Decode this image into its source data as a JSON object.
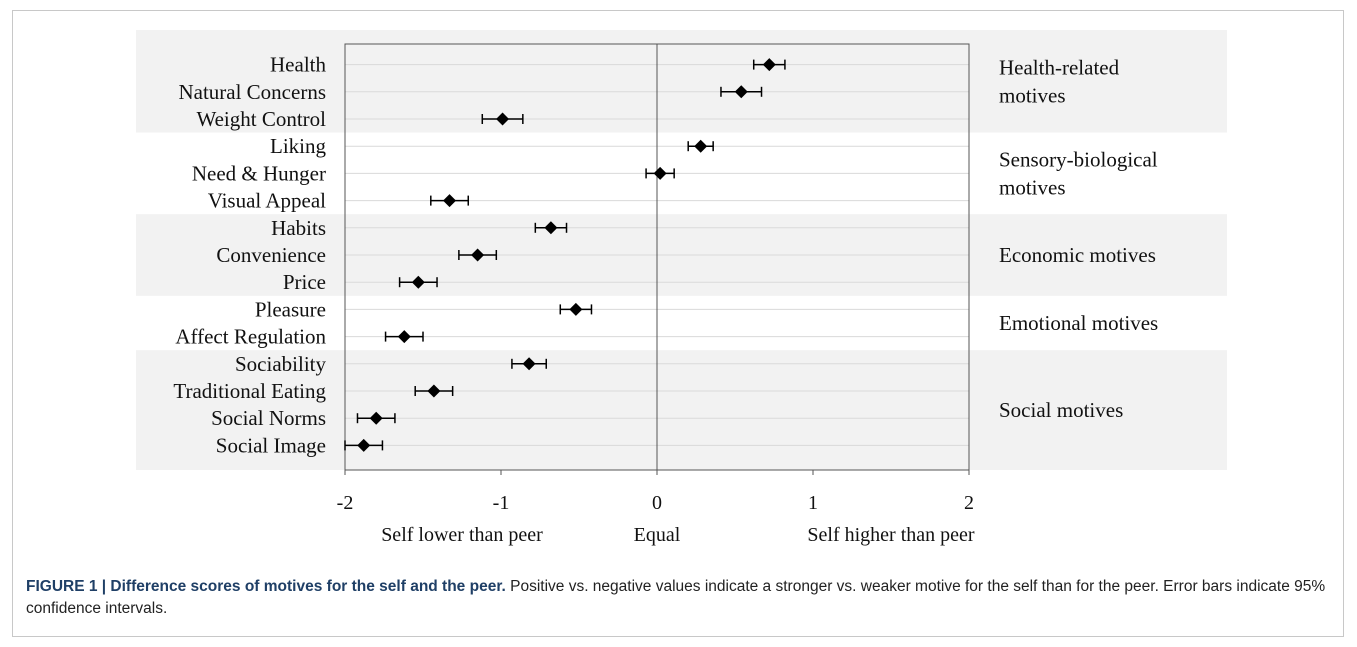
{
  "chart_data": {
    "type": "forest",
    "categories": [
      "Health",
      "Natural Concerns",
      "Weight Control",
      "Liking",
      "Need & Hunger",
      "Visual Appeal",
      "Habits",
      "Convenience",
      "Price",
      "Pleasure",
      "Affect Regulation",
      "Sociability",
      "Traditional Eating",
      "Social Norms",
      "Social Image"
    ],
    "values": [
      0.72,
      0.54,
      -0.99,
      0.28,
      0.02,
      -1.33,
      -0.68,
      -1.15,
      -1.53,
      -0.52,
      -1.62,
      -0.82,
      -1.43,
      -1.8,
      -1.88
    ],
    "ci": [
      [
        0.62,
        0.82
      ],
      [
        0.41,
        0.67
      ],
      [
        -1.12,
        -0.86
      ],
      [
        0.2,
        0.36
      ],
      [
        -0.07,
        0.11
      ],
      [
        -1.45,
        -1.21
      ],
      [
        -0.78,
        -0.58
      ],
      [
        -1.27,
        -1.03
      ],
      [
        -1.65,
        -1.41
      ],
      [
        -0.62,
        -0.42
      ],
      [
        -1.74,
        -1.5
      ],
      [
        -0.93,
        -0.71
      ],
      [
        -1.55,
        -1.31
      ],
      [
        -1.92,
        -1.68
      ],
      [
        -2.0,
        -1.76
      ]
    ],
    "groups": [
      {
        "label_lines": [
          "Health-related",
          "motives"
        ],
        "start": 0,
        "end": 2,
        "shaded": true
      },
      {
        "label_lines": [
          "Sensory-biological",
          "motives"
        ],
        "start": 3,
        "end": 5,
        "shaded": false
      },
      {
        "label_lines": [
          "Economic motives"
        ],
        "start": 6,
        "end": 8,
        "shaded": true
      },
      {
        "label_lines": [
          "Emotional motives"
        ],
        "start": 9,
        "end": 10,
        "shaded": false
      },
      {
        "label_lines": [
          "Social motives"
        ],
        "start": 11,
        "end": 14,
        "shaded": true
      }
    ],
    "xlim": [
      -2,
      2
    ],
    "xticks": [
      -2,
      -1,
      0,
      1,
      2
    ],
    "xtick_labels": [
      "-2",
      "-1",
      "0",
      "1",
      "2"
    ],
    "x_anchor_labels": [
      {
        "x": -1.25,
        "text": "Self lower than peer"
      },
      {
        "x": 0,
        "text": "Equal"
      },
      {
        "x": 1.5,
        "text": "Self higher than peer"
      }
    ],
    "grid": "horizontal",
    "colors": {
      "shade": "#f2f2f2",
      "marker": "#000000",
      "grid": "#d9d9d9"
    }
  },
  "caption": {
    "title": "FIGURE 1 | Difference scores of motives for the self and the peer.",
    "text": " Positive vs. negative values indicate a stronger vs. weaker motive for the self than for the peer. Error bars indicate 95% confidence intervals."
  }
}
